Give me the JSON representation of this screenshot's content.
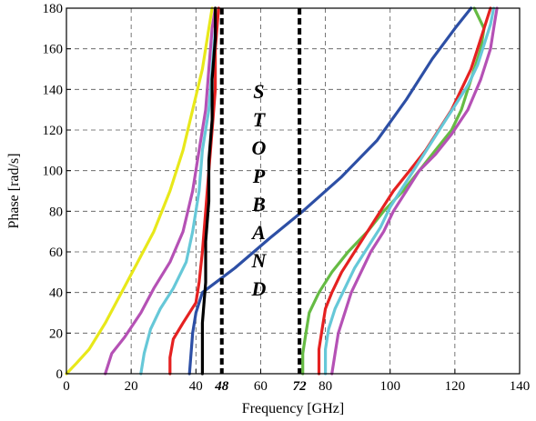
{
  "chart_data": {
    "type": "line",
    "xlabel": "Frequency [GHz]",
    "ylabel": "Phase [rad/s]",
    "xlim": [
      0,
      140
    ],
    "ylim": [
      0,
      180
    ],
    "x_ticks": [
      "0",
      "20",
      "40",
      "60",
      "80",
      "100",
      "120",
      "140"
    ],
    "y_ticks": [
      "0",
      "20",
      "40",
      "60",
      "80",
      "100",
      "120",
      "140",
      "160",
      "180"
    ],
    "grid": true,
    "stopband": {
      "lower": 48,
      "upper": 72,
      "lower_label": "48",
      "upper_label": "72",
      "text": [
        "S",
        "T",
        "O",
        "P",
        "B",
        "A",
        "N",
        "D"
      ]
    },
    "series": [
      {
        "color": "#e8e81a",
        "points": [
          [
            0,
            0
          ],
          [
            3,
            5
          ],
          [
            7,
            12
          ],
          [
            12,
            25
          ],
          [
            17,
            40
          ],
          [
            22,
            55
          ],
          [
            27,
            70
          ],
          [
            32,
            90
          ],
          [
            36,
            110
          ],
          [
            39,
            130
          ],
          [
            42,
            150
          ],
          [
            44,
            170
          ],
          [
            45,
            180
          ]
        ]
      },
      {
        "color": "#b551b5",
        "points": [
          [
            12,
            0
          ],
          [
            14,
            10
          ],
          [
            18,
            18
          ],
          [
            23,
            30
          ],
          [
            27,
            42
          ],
          [
            32,
            55
          ],
          [
            36,
            70
          ],
          [
            39,
            90
          ],
          [
            41,
            110
          ],
          [
            43,
            130
          ],
          [
            44,
            150
          ],
          [
            45,
            170
          ],
          [
            46,
            180
          ]
        ]
      },
      {
        "color": "#66c8d8",
        "points": [
          [
            23,
            0
          ],
          [
            24,
            10
          ],
          [
            26,
            22
          ],
          [
            29,
            32
          ],
          [
            33,
            42
          ],
          [
            37,
            55
          ],
          [
            39,
            70
          ],
          [
            41,
            90
          ],
          [
            42,
            110
          ],
          [
            44,
            130
          ],
          [
            45,
            150
          ],
          [
            46,
            170
          ],
          [
            47,
            180
          ]
        ]
      },
      {
        "color": "#e52121",
        "points": [
          [
            32,
            0
          ],
          [
            32,
            8
          ],
          [
            33,
            17
          ],
          [
            36,
            25
          ],
          [
            40,
            35
          ],
          [
            41,
            45
          ],
          [
            42,
            60
          ],
          [
            43,
            80
          ],
          [
            44,
            100
          ],
          [
            45,
            120
          ],
          [
            46,
            140
          ],
          [
            46,
            160
          ],
          [
            47,
            180
          ]
        ]
      },
      {
        "color": "#2d4fa5",
        "points": [
          [
            38,
            0
          ],
          [
            39,
            20
          ],
          [
            40,
            30
          ],
          [
            42,
            40
          ],
          [
            52,
            52
          ],
          [
            63,
            67
          ],
          [
            73,
            80
          ],
          [
            85,
            97
          ],
          [
            96,
            115
          ],
          [
            105,
            135
          ],
          [
            113,
            155
          ],
          [
            120,
            170
          ],
          [
            125,
            180
          ]
        ]
      },
      {
        "color": "#000000",
        "points": [
          [
            42,
            0
          ],
          [
            42,
            10
          ],
          [
            42,
            25
          ],
          [
            43,
            45
          ],
          [
            43,
            65
          ],
          [
            44,
            85
          ],
          [
            44,
            105
          ],
          [
            45,
            125
          ],
          [
            45,
            145
          ],
          [
            46,
            165
          ],
          [
            46,
            180
          ]
        ]
      },
      {
        "color": "#66bb44",
        "points": [
          [
            73,
            0
          ],
          [
            73,
            10
          ],
          [
            74,
            20
          ],
          [
            75,
            30
          ],
          [
            78,
            40
          ],
          [
            82,
            50
          ],
          [
            87,
            60
          ],
          [
            93,
            70
          ],
          [
            98,
            80
          ],
          [
            104,
            90
          ],
          [
            109,
            100
          ],
          [
            114,
            110
          ],
          [
            119,
            120
          ],
          [
            122,
            130
          ],
          [
            124,
            140
          ],
          [
            126,
            150
          ],
          [
            128,
            160
          ],
          [
            129,
            170
          ],
          [
            126,
            180
          ]
        ]
      },
      {
        "color": "#e52121",
        "points": [
          [
            78,
            0
          ],
          [
            78,
            12
          ],
          [
            79,
            22
          ],
          [
            80,
            32
          ],
          [
            82,
            40
          ],
          [
            85,
            50
          ],
          [
            89,
            60
          ],
          [
            93,
            70
          ],
          [
            97,
            80
          ],
          [
            101,
            90
          ],
          [
            106,
            100
          ],
          [
            111,
            110
          ],
          [
            115,
            120
          ],
          [
            119,
            130
          ],
          [
            122,
            140
          ],
          [
            125,
            150
          ],
          [
            127,
            160
          ],
          [
            129,
            170
          ],
          [
            131,
            180
          ]
        ]
      },
      {
        "color": "#66c8d8",
        "points": [
          [
            80,
            0
          ],
          [
            80,
            12
          ],
          [
            81,
            22
          ],
          [
            83,
            32
          ],
          [
            86,
            42
          ],
          [
            89,
            52
          ],
          [
            93,
            62
          ],
          [
            97,
            72
          ],
          [
            100,
            82
          ],
          [
            104,
            92
          ],
          [
            108,
            102
          ],
          [
            112,
            112
          ],
          [
            116,
            122
          ],
          [
            120,
            132
          ],
          [
            124,
            142
          ],
          [
            127,
            152
          ],
          [
            129,
            162
          ],
          [
            131,
            172
          ],
          [
            132,
            180
          ]
        ]
      },
      {
        "color": "#b551b5",
        "points": [
          [
            82,
            0
          ],
          [
            83,
            10
          ],
          [
            84,
            20
          ],
          [
            86,
            30
          ],
          [
            88,
            40
          ],
          [
            91,
            50
          ],
          [
            94,
            60
          ],
          [
            98,
            70
          ],
          [
            101,
            80
          ],
          [
            105,
            90
          ],
          [
            109,
            100
          ],
          [
            114,
            108
          ],
          [
            119,
            118
          ],
          [
            124,
            130
          ],
          [
            128,
            145
          ],
          [
            131,
            160
          ],
          [
            132,
            170
          ],
          [
            133,
            180
          ]
        ]
      }
    ]
  }
}
